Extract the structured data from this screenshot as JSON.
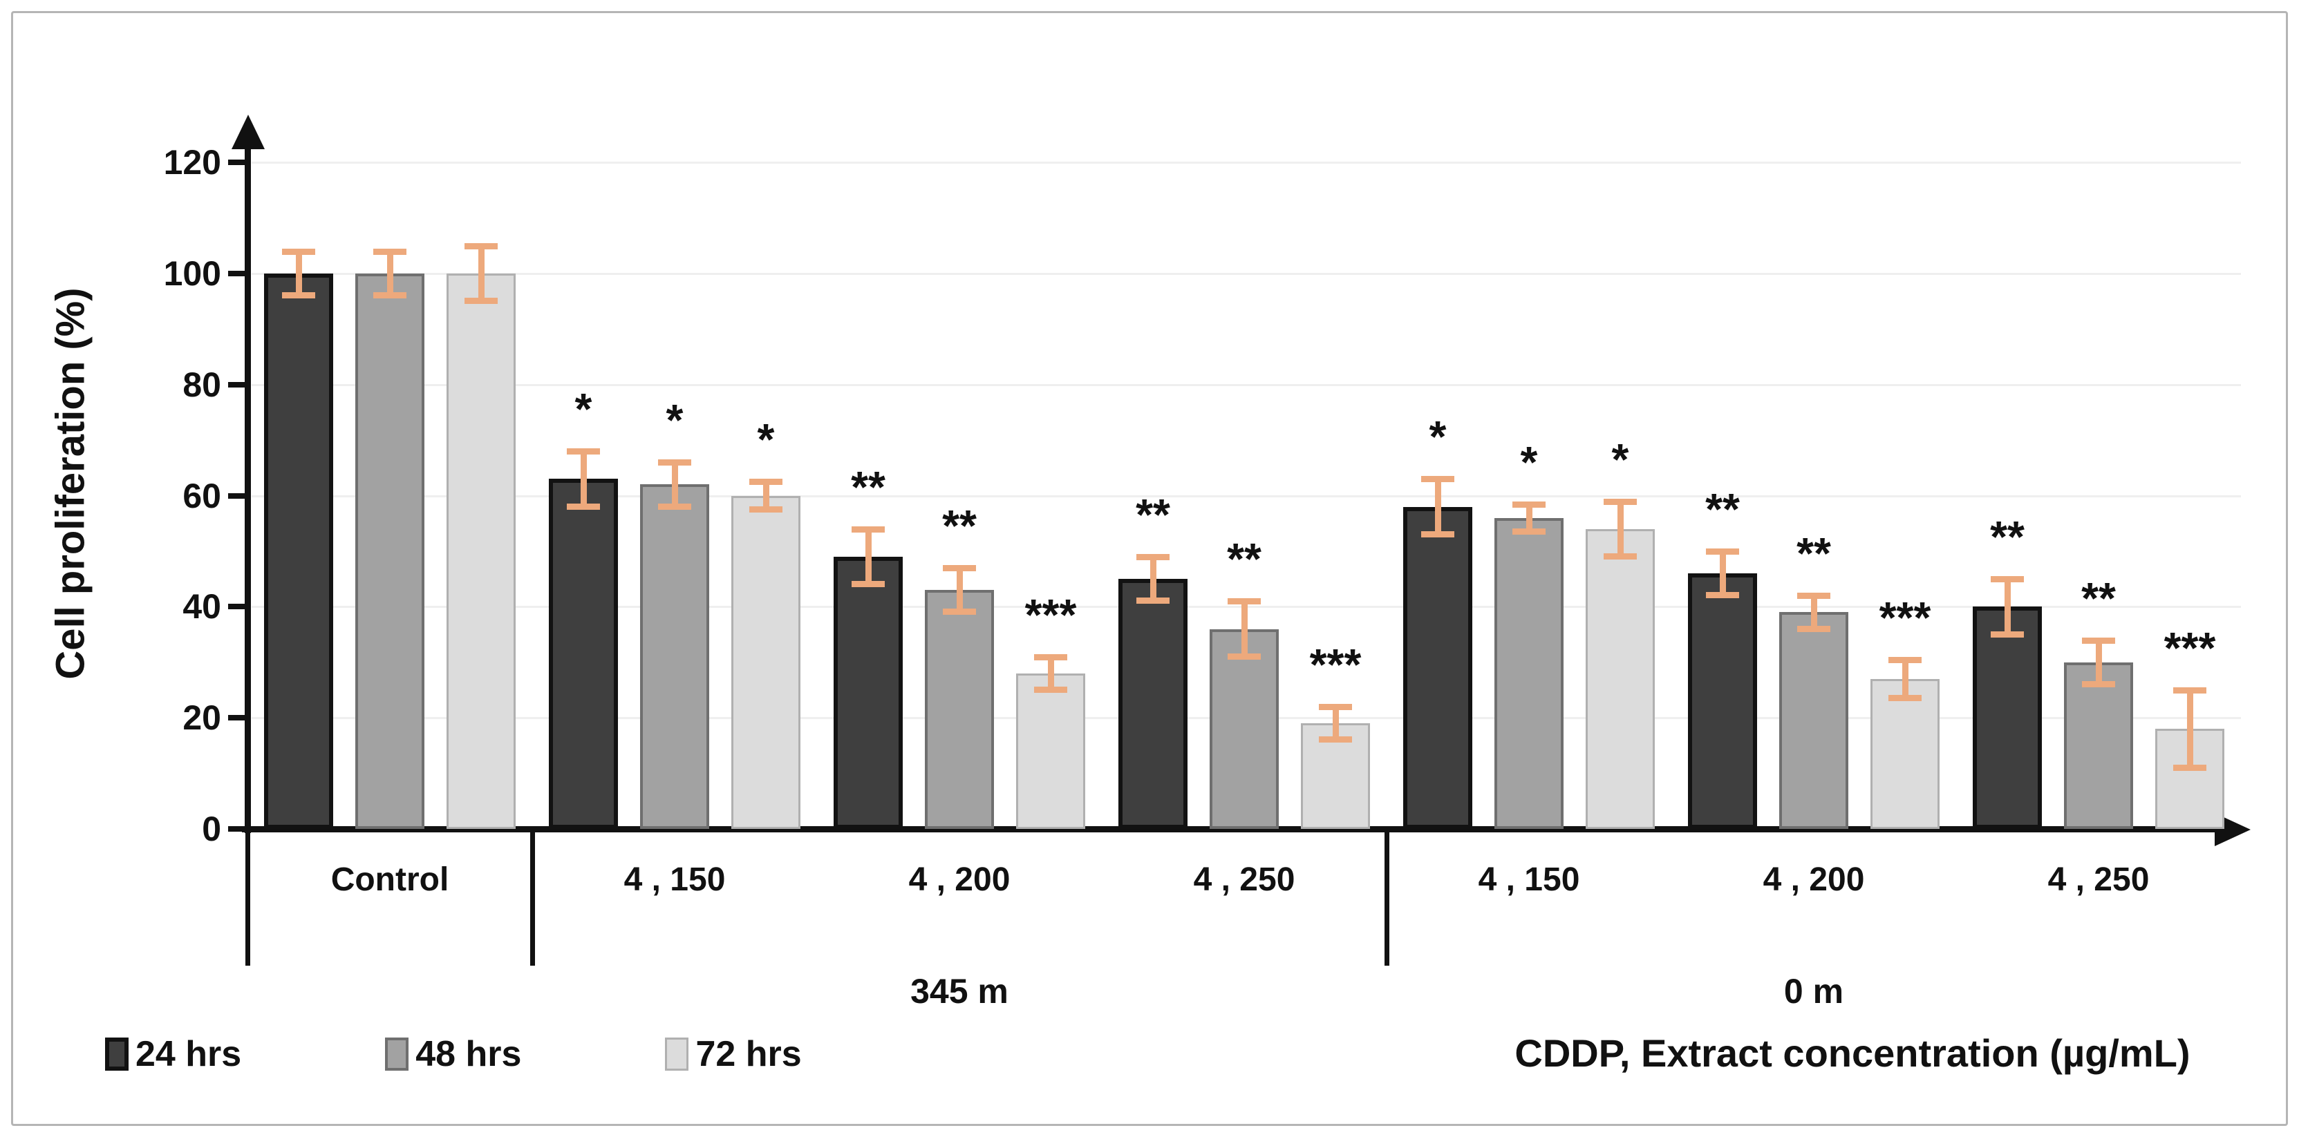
{
  "chart_data": {
    "type": "bar",
    "title": "",
    "ylabel": "Cell proliferation (%)",
    "xlabel": "CDDP, Extract concentration (µg/mL)",
    "ylim": [
      0,
      120
    ],
    "yticks": [
      0,
      20,
      40,
      60,
      80,
      100,
      120
    ],
    "grid": "horizontal-faint",
    "legend_position": "bottom-left",
    "series_names": [
      "24 hrs",
      "48 hrs",
      "72 hrs"
    ],
    "colors": {
      "series_fill": [
        "#3f3f3f",
        "#a2a2a2",
        "#dcdcdc"
      ],
      "series_border": [
        "#121212",
        "#6f6f6f",
        "#b0b0b0"
      ],
      "error_bar": "#eda97c",
      "axis": "#111111",
      "grid_line": "#efefef",
      "frame_border": "#b5b5b5"
    },
    "sections": [
      {
        "label": "",
        "separator_after": true,
        "categories": [
          {
            "label": "Control",
            "values": [
              100,
              100,
              100
            ],
            "errors": [
              4,
              4,
              5
            ],
            "sig": [
              "",
              "",
              ""
            ]
          }
        ]
      },
      {
        "label": "345 m",
        "separator_after": true,
        "categories": [
          {
            "label": "4 , 150",
            "values": [
              63,
              62,
              60
            ],
            "errors": [
              5,
              4,
              2.5
            ],
            "sig": [
              "*",
              "*",
              "*"
            ]
          },
          {
            "label": "4 , 200",
            "values": [
              49,
              43,
              28
            ],
            "errors": [
              5,
              4,
              3
            ],
            "sig": [
              "**",
              "**",
              "***"
            ]
          },
          {
            "label": "4 , 250",
            "values": [
              45,
              36,
              19
            ],
            "errors": [
              4,
              5,
              3
            ],
            "sig": [
              "**",
              "**",
              "***"
            ]
          }
        ]
      },
      {
        "label": "0 m",
        "separator_after": false,
        "categories": [
          {
            "label": "4 , 150",
            "values": [
              58,
              56,
              54
            ],
            "errors": [
              5,
              2.5,
              5
            ],
            "sig": [
              "*",
              "*",
              "*"
            ]
          },
          {
            "label": "4 , 200",
            "values": [
              46,
              39,
              27
            ],
            "errors": [
              4,
              3,
              3.5
            ],
            "sig": [
              "**",
              "**",
              "***"
            ]
          },
          {
            "label": "4 , 250",
            "values": [
              40,
              30,
              18
            ],
            "errors": [
              5,
              4,
              7
            ],
            "sig": [
              "**",
              "**",
              "***"
            ]
          }
        ]
      }
    ]
  }
}
